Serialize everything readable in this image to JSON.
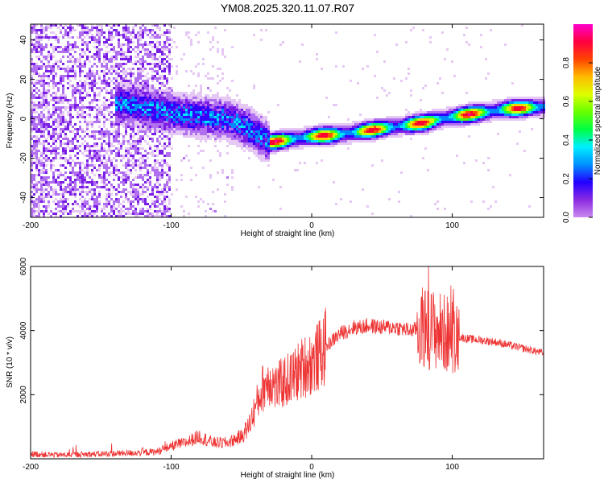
{
  "title": "YM08.2025.320.11.07.R07",
  "colors": {
    "snr_line": "#ee3333",
    "frame": "#000000",
    "background": "#ffffff"
  },
  "colormap": [
    "#ffffff",
    "#e6c8f5",
    "#b070f0",
    "#7a1ee6",
    "#3300ff",
    "#0088ff",
    "#00e5ff",
    "#00ff66",
    "#55ff00",
    "#ccff00",
    "#ffcc00",
    "#ff5500",
    "#ff0033",
    "#ff00aa",
    "#ff00ff"
  ],
  "chart_data": [
    {
      "type": "heatmap",
      "name": "spectrogram",
      "xlabel": "Height of straight line (km)",
      "ylabel": "Frequency (Hz)",
      "xlim": [
        -200,
        165
      ],
      "ylim": [
        -50,
        48
      ],
      "xticks": [
        -200,
        -100,
        0,
        100
      ],
      "yticks": [
        -40,
        -20,
        0,
        20,
        40
      ],
      "colorbar": {
        "label": "Normalized spectral amplitude",
        "range": [
          0,
          1
        ],
        "ticks": [
          "0.0",
          "0.2",
          "0.4",
          "0.6",
          "0.8"
        ]
      },
      "ridge": {
        "description": "dominant frequency track",
        "x": [
          -135,
          -120,
          -100,
          -80,
          -60,
          -45,
          -38,
          -30,
          -20,
          0,
          20,
          40,
          60,
          80,
          100,
          120,
          140,
          165
        ],
        "y": [
          8,
          6,
          3,
          1,
          0,
          -5,
          -8,
          -12,
          -11,
          -9,
          -8,
          -6,
          -4,
          -2,
          1,
          3,
          5,
          6
        ]
      }
    },
    {
      "type": "line",
      "name": "snr",
      "xlabel": "Height of straight line (km)",
      "ylabel": "SNR (10 * v/v)",
      "xlim": [
        -200,
        165
      ],
      "ylim": [
        0,
        6000
      ],
      "xticks": [
        -200,
        -100,
        0,
        100
      ],
      "yticks": [
        2000,
        4000,
        6000
      ],
      "series": [
        {
          "name": "SNR envelope",
          "x": [
            -200,
            -180,
            -160,
            -140,
            -120,
            -110,
            -100,
            -90,
            -80,
            -70,
            -60,
            -50,
            -45,
            -40,
            -35,
            -30,
            -25,
            -20,
            -15,
            -10,
            -5,
            0,
            5,
            10,
            15,
            20,
            25,
            30,
            35,
            40,
            50,
            60,
            70,
            75,
            80,
            85,
            90,
            95,
            100,
            103,
            105,
            110,
            120,
            130,
            140,
            150,
            160,
            165
          ],
          "values": [
            150,
            120,
            140,
            160,
            200,
            220,
            400,
            500,
            700,
            500,
            500,
            700,
            1000,
            1600,
            2200,
            2500,
            2200,
            2400,
            2500,
            2700,
            2900,
            3000,
            3200,
            3500,
            3700,
            3900,
            4000,
            4100,
            4100,
            4150,
            4100,
            4100,
            4000,
            4050,
            4100,
            4050,
            4000,
            3900,
            3900,
            3950,
            3800,
            3750,
            3700,
            3650,
            3550,
            3450,
            3350,
            3300
          ]
        }
      ]
    }
  ]
}
